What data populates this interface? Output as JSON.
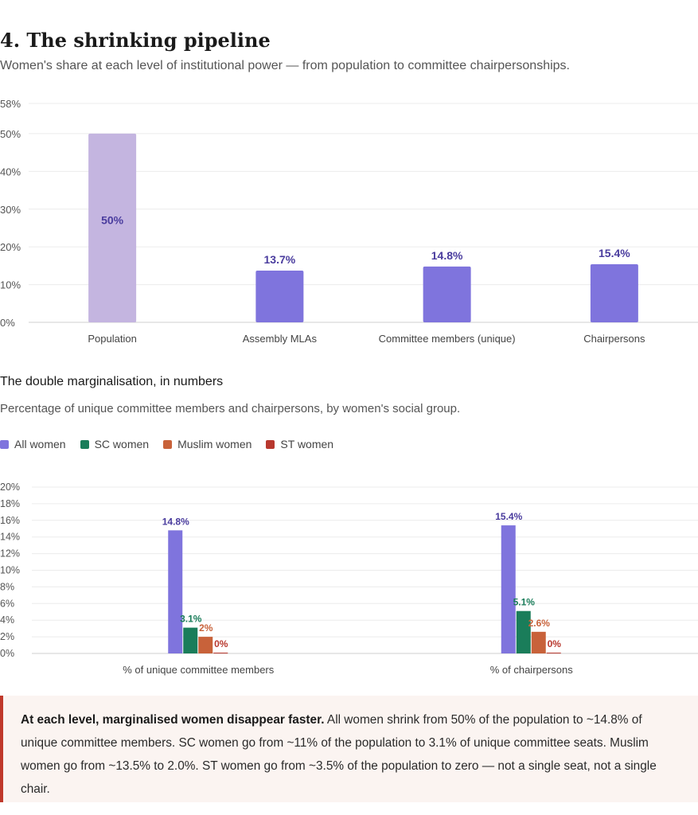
{
  "section": {
    "title": "4. The shrinking pipeline",
    "subtitle": "Women's share at each level of institutional power — from population to committee chairpersonships."
  },
  "chart_data": [
    {
      "type": "bar",
      "categories": [
        "Population",
        "Assembly MLAs",
        "Committee members (unique)",
        "Chairpersons"
      ],
      "values": [
        50,
        13.7,
        14.8,
        15.4
      ],
      "data_labels": [
        "50%",
        "13.7%",
        "14.8%",
        "15.4%"
      ],
      "yticks": [
        "0%",
        "10%",
        "20%",
        "30%",
        "40%",
        "50%",
        "58%"
      ],
      "ytick_values": [
        0,
        10,
        20,
        30,
        40,
        50,
        58
      ],
      "ylim": [
        0,
        58
      ],
      "grid": true,
      "colors": [
        "#c4b5e0",
        "#7f74dd",
        "#7f74dd",
        "#7f74dd"
      ],
      "label_colors": [
        "#4a3c9e",
        "#4a3c9e",
        "#4a3c9e",
        "#4a3c9e"
      ]
    },
    {
      "type": "bar",
      "title": "The double marginalisation, in numbers",
      "subtitle": "Percentage of unique committee members and chairpersons, by women's social group.",
      "categories": [
        "% of unique committee members",
        "% of chairpersons"
      ],
      "series": [
        {
          "name": "All women",
          "color": "#7f74dd",
          "label_color": "#4a3c9e",
          "values": [
            14.8,
            15.4
          ],
          "labels": [
            "14.8%",
            "15.4%"
          ]
        },
        {
          "name": "SC women",
          "color": "#1a7d5a",
          "label_color": "#1a7d5a",
          "values": [
            3.1,
            5.1
          ],
          "labels": [
            "3.1%",
            "5.1%"
          ]
        },
        {
          "name": "Muslim women",
          "color": "#c8623a",
          "label_color": "#c8623a",
          "values": [
            2,
            2.6
          ],
          "labels": [
            "2%",
            "2.6%"
          ]
        },
        {
          "name": "ST women",
          "color": "#b8382e",
          "label_color": "#b8382e",
          "values": [
            0,
            0
          ],
          "labels": [
            "0%",
            "0%"
          ]
        }
      ],
      "yticks": [
        "0%",
        "2%",
        "4%",
        "6%",
        "8%",
        "10%",
        "12%",
        "14%",
        "16%",
        "18%",
        "20%"
      ],
      "ytick_values": [
        0,
        2,
        4,
        6,
        8,
        10,
        12,
        14,
        16,
        18,
        20
      ],
      "ylim": [
        0,
        20
      ],
      "grid": true,
      "legend_position": "top-left"
    }
  ],
  "callout": {
    "strong": "At each level, marginalised women disappear faster.",
    "text": " All women shrink from 50% of the population to ~14.8% of unique committee members. SC women go from ~11% of the population to 3.1% of unique committee seats. Muslim women go from ~13.5% to 2.0%. ST women go from ~3.5% of the population to zero — not a single seat, not a single chair."
  }
}
